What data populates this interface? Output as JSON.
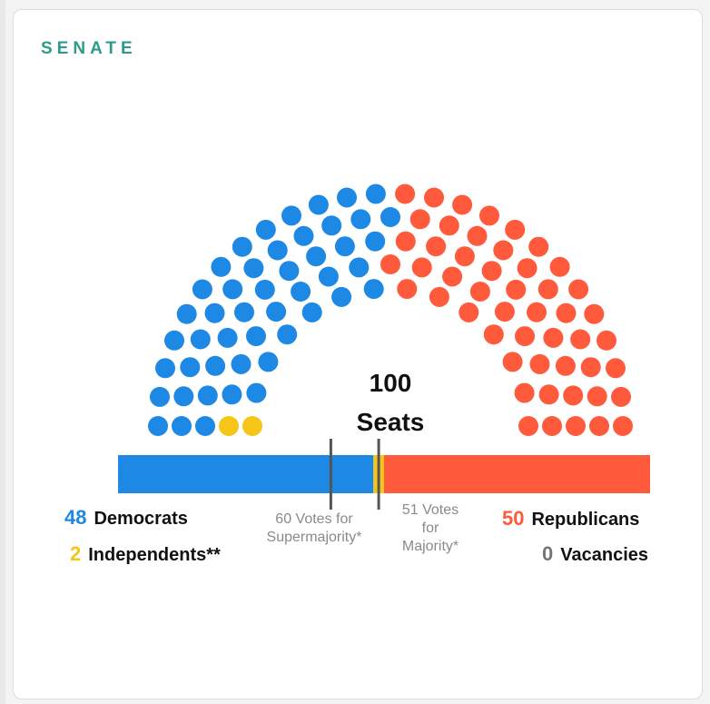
{
  "section_title": "SENATE",
  "colors": {
    "democrat": "#1e88e5",
    "independent": "#f5c518",
    "republican": "#ff5a3c",
    "vacancy": "#757575",
    "marker": "#555555"
  },
  "chart_data": {
    "type": "parliament",
    "total_label": "100",
    "total_sublabel": "Seats",
    "total_seats": 100,
    "groups": [
      {
        "key": "independent",
        "count": 2,
        "number": "2",
        "label": "Independents**"
      },
      {
        "key": "democrat",
        "count": 48,
        "number": "48",
        "label": "Democrats"
      },
      {
        "key": "republican",
        "count": 50,
        "number": "50",
        "label": "Republicans"
      },
      {
        "key": "vacancy",
        "count": 0,
        "number": "0",
        "label": "Vacancies"
      }
    ],
    "thresholds": [
      {
        "votes": 60,
        "label_lines": [
          "60 Votes for",
          "Supermajority*"
        ]
      },
      {
        "votes": 51,
        "label_lines": [
          "51 Votes",
          "for",
          "Majority*"
        ]
      }
    ]
  }
}
